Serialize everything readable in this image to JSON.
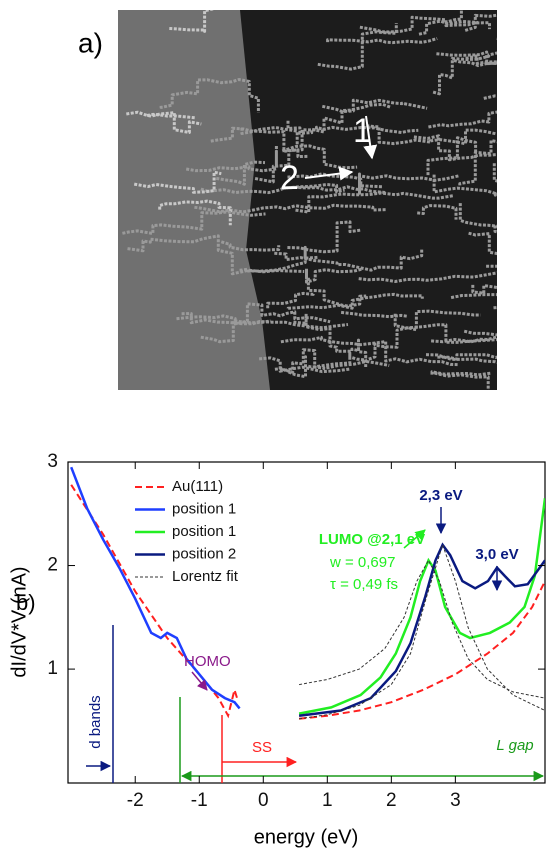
{
  "panel_a": {
    "label": "a)",
    "marker_1": "1",
    "marker_2": "2"
  },
  "chart_data": {
    "type": "line",
    "panel_label": "b)",
    "x_label": "energy (eV)",
    "y_label": "dI/dV*V (nA)",
    "xlim": [
      -3.05,
      4.4
    ],
    "xticks": [
      -2,
      -1,
      0,
      1,
      2,
      3
    ],
    "ylim": [
      -0.1,
      3
    ],
    "yticks": [
      1,
      2,
      3
    ],
    "series": [
      {
        "name": "Au(111)",
        "color": "#ff2020",
        "dash": "dashed",
        "x": [
          -3.0,
          -2.5,
          -2.0,
          -1.5,
          -1.0,
          -0.7,
          -0.55,
          -0.45,
          -0.4,
          null,
          0.56,
          1.0,
          1.5,
          2.0,
          2.5,
          3.0,
          3.5,
          3.9,
          4.2,
          4.4
        ],
        "values": [
          2.78,
          2.3,
          1.75,
          1.3,
          0.95,
          0.72,
          0.55,
          0.8,
          0.7,
          null,
          0.52,
          0.55,
          0.6,
          0.68,
          0.8,
          0.95,
          1.15,
          1.35,
          1.6,
          1.85
        ]
      },
      {
        "name": "position 1",
        "color": "#1f3fff",
        "dash": "solid",
        "x": [
          -3.0,
          -2.75,
          -2.5,
          -2.25,
          -2.0,
          -1.75,
          -1.6,
          -1.5,
          -1.35,
          -1.2,
          -1.0,
          -0.8,
          -0.6,
          -0.45,
          -0.37
        ],
        "values": [
          2.95,
          2.55,
          2.25,
          1.98,
          1.68,
          1.35,
          1.3,
          1.35,
          1.3,
          1.1,
          0.95,
          0.8,
          0.72,
          0.68,
          0.62
        ]
      },
      {
        "name": "position 1",
        "color": "#22ee22",
        "dash": "solid",
        "x": [
          0.56,
          1.06,
          1.52,
          1.83,
          2.07,
          2.3,
          2.45,
          2.58,
          2.69,
          2.84,
          3.07,
          3.23,
          3.54,
          3.85,
          4.08,
          4.24,
          4.4
        ],
        "values": [
          0.57,
          0.63,
          0.75,
          0.92,
          1.15,
          1.5,
          1.85,
          2.05,
          1.95,
          1.6,
          1.35,
          1.3,
          1.35,
          1.45,
          1.6,
          1.9,
          2.65
        ]
      },
      {
        "name": "position 2",
        "color": "#0a1a80",
        "dash": "solid",
        "x": [
          0.56,
          1.21,
          1.68,
          2.07,
          2.3,
          2.53,
          2.69,
          2.8,
          2.92,
          3.11,
          3.31,
          3.51,
          3.65,
          3.77,
          3.93,
          4.13,
          4.4
        ],
        "values": [
          0.55,
          0.6,
          0.72,
          0.98,
          1.25,
          1.7,
          2.05,
          2.2,
          2.1,
          1.85,
          1.78,
          1.85,
          1.98,
          1.9,
          1.8,
          1.82,
          2.05
        ]
      },
      {
        "name": "Lorentz fit",
        "color": "#333333",
        "dash": "thin",
        "x": [
          0.56,
          1.0,
          1.5,
          1.9,
          2.2,
          2.4,
          2.58,
          2.75,
          2.95,
          3.2,
          3.5,
          3.9,
          4.4,
          null,
          0.56,
          1.0,
          1.5,
          2.0,
          2.3,
          2.55,
          2.8,
          3.0,
          3.2,
          3.5,
          3.9,
          4.4
        ],
        "values": [
          0.85,
          0.9,
          1.0,
          1.2,
          1.5,
          1.85,
          2.05,
          1.85,
          1.45,
          1.1,
          0.9,
          0.78,
          0.72,
          null,
          0.52,
          0.56,
          0.65,
          0.85,
          1.15,
          1.7,
          2.2,
          1.85,
          1.4,
          1.0,
          0.75,
          0.6
        ]
      }
    ],
    "annotations": [
      "HOMO",
      "d bands",
      "SS",
      "L gap",
      "LUMO @2,1 eV",
      "w = 0,697",
      "τ = 0,49 fs",
      "2,3 eV",
      "3,0 eV"
    ]
  }
}
